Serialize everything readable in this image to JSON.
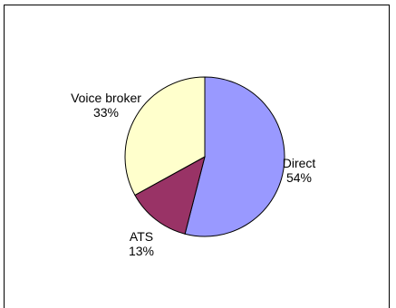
{
  "chart_data": {
    "type": "pie",
    "title": "",
    "slices": [
      {
        "label": "Direct",
        "value": 54,
        "percent_label": "54%",
        "color": "#9999ff"
      },
      {
        "label": "ATS",
        "value": 13,
        "percent_label": "13%",
        "color": "#993366"
      },
      {
        "label": "Voice broker",
        "value": 33,
        "percent_label": "33%",
        "color": "#ffffcc"
      }
    ],
    "start_angle": "12 o'clock",
    "direction": "clockwise",
    "legend": "none",
    "slice_edge_color": "#000000"
  }
}
